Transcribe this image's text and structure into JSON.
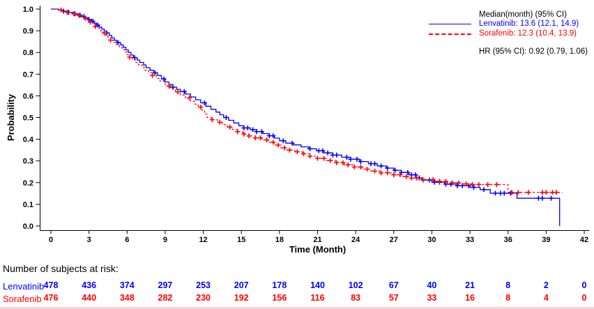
{
  "colors": {
    "lenvatinib": "#0000ff",
    "sorafenib": "#ff0000",
    "axis": "#000000",
    "background": "#ffffff",
    "table_divider": "#ff8a8a"
  },
  "legend": {
    "header": "Median(month) (95% CI)",
    "entries": [
      {
        "id": "lenvatinib",
        "label": "Lenvatinib: 13.6 (12.1, 14.9)",
        "color": "#0000ff",
        "line_style": "solid"
      },
      {
        "id": "sorafenib",
        "label": "Sorafenib: 12.3 (10.4, 13.9)",
        "color": "#ff0000",
        "line_style": "dashed"
      }
    ],
    "hr_label": "HR (95% CI): 0.92 (0.79, 1.06)"
  },
  "chart_data": {
    "type": "line",
    "subtype": "kaplan_meier_step",
    "title": "",
    "xlabel": "Time (Month)",
    "ylabel": "Probability",
    "xlim": [
      0,
      42
    ],
    "ylim": [
      0.0,
      1.0
    ],
    "x_ticks": [
      0,
      3,
      6,
      9,
      12,
      15,
      18,
      21,
      24,
      27,
      30,
      33,
      36,
      39,
      42
    ],
    "y_ticks": [
      0.0,
      0.1,
      0.2,
      0.3,
      0.4,
      0.5,
      0.6,
      0.7,
      0.8,
      0.9,
      1.0
    ],
    "grid": false,
    "legend_position": "top-right",
    "series": [
      {
        "name": "Lenvatinib",
        "color": "#0000ff",
        "dash": null,
        "median_month": 13.6,
        "median_ci": [
          12.1,
          14.9
        ],
        "steps": [
          [
            0,
            1.0
          ],
          [
            0.6,
            0.995
          ],
          [
            1.0,
            0.99
          ],
          [
            1.4,
            0.985
          ],
          [
            1.8,
            0.978
          ],
          [
            2.1,
            0.972
          ],
          [
            2.4,
            0.966
          ],
          [
            2.7,
            0.96
          ],
          [
            3.0,
            0.952
          ],
          [
            3.2,
            0.944
          ],
          [
            3.4,
            0.935
          ],
          [
            3.6,
            0.926
          ],
          [
            3.8,
            0.917
          ],
          [
            4.0,
            0.908
          ],
          [
            4.2,
            0.899
          ],
          [
            4.4,
            0.89
          ],
          [
            4.6,
            0.878
          ],
          [
            4.8,
            0.867
          ],
          [
            5.0,
            0.856
          ],
          [
            5.2,
            0.845
          ],
          [
            5.5,
            0.835
          ],
          [
            5.7,
            0.824
          ],
          [
            5.9,
            0.812
          ],
          [
            6.1,
            0.8
          ],
          [
            6.3,
            0.788
          ],
          [
            6.5,
            0.776
          ],
          [
            6.8,
            0.765
          ],
          [
            7.0,
            0.754
          ],
          [
            7.3,
            0.742
          ],
          [
            7.5,
            0.73
          ],
          [
            7.8,
            0.718
          ],
          [
            8.1,
            0.706
          ],
          [
            8.4,
            0.694
          ],
          [
            8.7,
            0.678
          ],
          [
            9.0,
            0.664
          ],
          [
            9.3,
            0.652
          ],
          [
            9.6,
            0.64
          ],
          [
            9.9,
            0.63
          ],
          [
            10.2,
            0.62
          ],
          [
            10.6,
            0.608
          ],
          [
            11.0,
            0.595
          ],
          [
            11.4,
            0.582
          ],
          [
            11.8,
            0.568
          ],
          [
            12.2,
            0.552
          ],
          [
            12.6,
            0.538
          ],
          [
            13.0,
            0.525
          ],
          [
            13.3,
            0.513
          ],
          [
            13.6,
            0.5
          ],
          [
            14.0,
            0.487
          ],
          [
            14.4,
            0.475
          ],
          [
            14.8,
            0.462
          ],
          [
            15.2,
            0.452
          ],
          [
            15.7,
            0.444
          ],
          [
            16.2,
            0.435
          ],
          [
            16.7,
            0.426
          ],
          [
            17.2,
            0.416
          ],
          [
            17.6,
            0.405
          ],
          [
            18.0,
            0.393
          ],
          [
            18.5,
            0.382
          ],
          [
            19.1,
            0.374
          ],
          [
            19.7,
            0.365
          ],
          [
            20.3,
            0.356
          ],
          [
            20.9,
            0.347
          ],
          [
            21.5,
            0.337
          ],
          [
            22.2,
            0.327
          ],
          [
            22.9,
            0.317
          ],
          [
            23.6,
            0.308
          ],
          [
            24.3,
            0.297
          ],
          [
            25.0,
            0.287
          ],
          [
            25.7,
            0.277
          ],
          [
            26.4,
            0.267
          ],
          [
            27.0,
            0.257
          ],
          [
            27.6,
            0.247
          ],
          [
            28.2,
            0.236
          ],
          [
            28.8,
            0.222
          ],
          [
            29.3,
            0.212
          ],
          [
            30.0,
            0.202
          ],
          [
            31.0,
            0.193
          ],
          [
            32.0,
            0.186
          ],
          [
            33.0,
            0.178
          ],
          [
            33.8,
            0.168
          ],
          [
            34.6,
            0.151
          ],
          [
            36.7,
            0.128
          ],
          [
            40.06,
            0.0
          ]
        ],
        "censors": [
          1.0,
          1.4,
          1.9,
          2.3,
          2.6,
          3.0,
          3.3,
          3.7,
          4.4,
          5.3,
          6.6,
          8.2,
          8.9,
          9.6,
          10.5,
          12.1,
          13.8,
          15.2,
          15.5,
          15.9,
          16.2,
          16.6,
          17.2,
          17.5,
          18.3,
          19.0,
          20.4,
          21.1,
          21.4,
          21.8,
          22.2,
          22.5,
          23.3,
          23.6,
          24.1,
          24.4,
          25.2,
          25.5,
          26.0,
          26.5,
          27.1,
          27.6,
          28.1,
          28.4,
          28.7,
          29.0,
          29.3,
          29.8,
          30.2,
          30.6,
          31.1,
          31.5,
          32.0,
          32.4,
          32.9,
          33.3,
          34.1,
          35.0,
          35.4,
          35.7,
          36.2,
          38.4,
          38.7,
          39.4
        ]
      },
      {
        "name": "Sorafenib",
        "color": "#ff0000",
        "dash": "3,3",
        "median_month": 12.3,
        "median_ci": [
          10.4,
          13.9
        ],
        "steps": [
          [
            0,
            1.0
          ],
          [
            0.5,
            0.996
          ],
          [
            0.9,
            0.991
          ],
          [
            1.3,
            0.985
          ],
          [
            1.7,
            0.978
          ],
          [
            2.0,
            0.971
          ],
          [
            2.3,
            0.964
          ],
          [
            2.6,
            0.957
          ],
          [
            2.9,
            0.949
          ],
          [
            3.1,
            0.94
          ],
          [
            3.3,
            0.93
          ],
          [
            3.5,
            0.92
          ],
          [
            3.7,
            0.91
          ],
          [
            3.9,
            0.9
          ],
          [
            4.1,
            0.89
          ],
          [
            4.3,
            0.879
          ],
          [
            4.5,
            0.868
          ],
          [
            4.7,
            0.857
          ],
          [
            4.9,
            0.846
          ],
          [
            5.1,
            0.836
          ],
          [
            5.4,
            0.825
          ],
          [
            5.6,
            0.814
          ],
          [
            5.8,
            0.802
          ],
          [
            6.0,
            0.79
          ],
          [
            6.2,
            0.778
          ],
          [
            6.4,
            0.766
          ],
          [
            6.7,
            0.754
          ],
          [
            6.9,
            0.742
          ],
          [
            7.2,
            0.73
          ],
          [
            7.4,
            0.718
          ],
          [
            7.7,
            0.706
          ],
          [
            8.0,
            0.694
          ],
          [
            8.3,
            0.68
          ],
          [
            8.6,
            0.667
          ],
          [
            9.0,
            0.645
          ],
          [
            9.4,
            0.632
          ],
          [
            9.8,
            0.618
          ],
          [
            10.2,
            0.604
          ],
          [
            10.6,
            0.59
          ],
          [
            11.0,
            0.576
          ],
          [
            11.3,
            0.562
          ],
          [
            11.6,
            0.548
          ],
          [
            11.9,
            0.532
          ],
          [
            12.1,
            0.516
          ],
          [
            12.3,
            0.5
          ],
          [
            12.7,
            0.49
          ],
          [
            13.1,
            0.478
          ],
          [
            13.5,
            0.467
          ],
          [
            13.9,
            0.456
          ],
          [
            14.3,
            0.445
          ],
          [
            14.7,
            0.435
          ],
          [
            15.1,
            0.424
          ],
          [
            15.6,
            0.415
          ],
          [
            16.1,
            0.406
          ],
          [
            16.6,
            0.397
          ],
          [
            17.1,
            0.386
          ],
          [
            17.6,
            0.373
          ],
          [
            18.1,
            0.36
          ],
          [
            18.6,
            0.35
          ],
          [
            19.2,
            0.342
          ],
          [
            19.8,
            0.333
          ],
          [
            20.4,
            0.322
          ],
          [
            21.0,
            0.312
          ],
          [
            21.7,
            0.302
          ],
          [
            22.4,
            0.292
          ],
          [
            23.1,
            0.282
          ],
          [
            23.8,
            0.272
          ],
          [
            24.5,
            0.262
          ],
          [
            25.2,
            0.253
          ],
          [
            26.0,
            0.245
          ],
          [
            26.8,
            0.236
          ],
          [
            27.6,
            0.228
          ],
          [
            28.4,
            0.221
          ],
          [
            29.2,
            0.214
          ],
          [
            30.2,
            0.206
          ],
          [
            31.2,
            0.199
          ],
          [
            32.2,
            0.194
          ],
          [
            33.2,
            0.191
          ],
          [
            36.0,
            0.155
          ],
          [
            40.3,
            0.155
          ]
        ],
        "censors": [
          0.8,
          1.3,
          1.8,
          2.2,
          2.7,
          3.1,
          3.5,
          4.2,
          4.7,
          6.2,
          8.0,
          9.3,
          10.0,
          10.9,
          11.8,
          12.7,
          13.3,
          14.1,
          14.7,
          15.2,
          15.6,
          16.1,
          16.5,
          17.0,
          17.5,
          17.9,
          18.4,
          18.8,
          19.4,
          19.9,
          20.4,
          21.0,
          21.5,
          22.0,
          22.5,
          23.0,
          23.4,
          23.9,
          24.4,
          24.9,
          25.5,
          26.0,
          26.5,
          27.0,
          27.5,
          28.0,
          28.4,
          28.8,
          29.3,
          30.1,
          30.6,
          31.1,
          31.6,
          32.1,
          32.7,
          33.2,
          33.7,
          34.4,
          35.1,
          36.3,
          36.8,
          37.6,
          38.7,
          39.0,
          39.5,
          39.8
        ]
      }
    ],
    "annotations": [
      "HR (95% CI): 0.92 (0.79, 1.06)"
    ]
  },
  "risk_table": {
    "caption": "Number of subjects at risk:",
    "time_points": [
      0,
      3,
      6,
      9,
      12,
      15,
      18,
      21,
      24,
      27,
      30,
      33,
      36,
      39,
      42
    ],
    "rows": [
      {
        "name": "Lenvatinib",
        "color": "#0000ff",
        "values": [
          478,
          436,
          374,
          297,
          253,
          207,
          178,
          140,
          102,
          67,
          40,
          21,
          8,
          2,
          0
        ]
      },
      {
        "name": "Sorafenib",
        "color": "#ff0000",
        "values": [
          476,
          440,
          348,
          282,
          230,
          192,
          156,
          116,
          83,
          57,
          33,
          16,
          8,
          4,
          0
        ]
      }
    ]
  }
}
